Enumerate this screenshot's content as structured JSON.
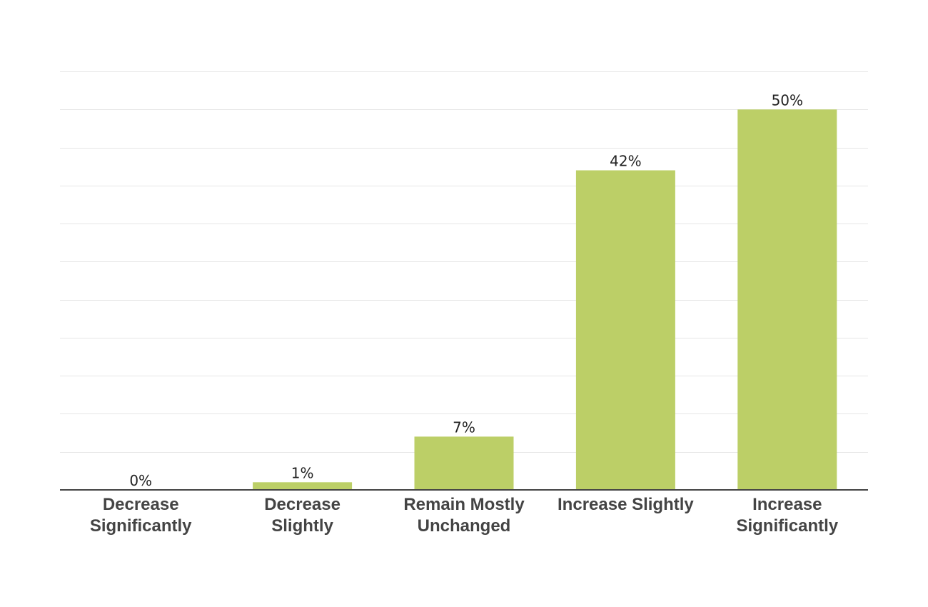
{
  "chart_data": {
    "type": "bar",
    "title": "",
    "xlabel": "",
    "ylabel": "",
    "categories": [
      [
        "Decrease",
        "Significantly"
      ],
      [
        "Decrease",
        "Slightly"
      ],
      [
        "Remain Mostly",
        "Unchanged"
      ],
      [
        "Increase Slightly"
      ],
      [
        "Increase",
        "Significantly"
      ]
    ],
    "values": [
      0,
      1,
      7,
      42,
      50
    ],
    "value_labels": [
      "0%",
      "1%",
      "7%",
      "42%",
      "50%"
    ],
    "ylim": [
      0,
      55
    ],
    "grid_step": 5,
    "grid": true,
    "bar_color": "#bccf67",
    "axis_color": "#444444",
    "grid_color": "#e6e6e6"
  }
}
